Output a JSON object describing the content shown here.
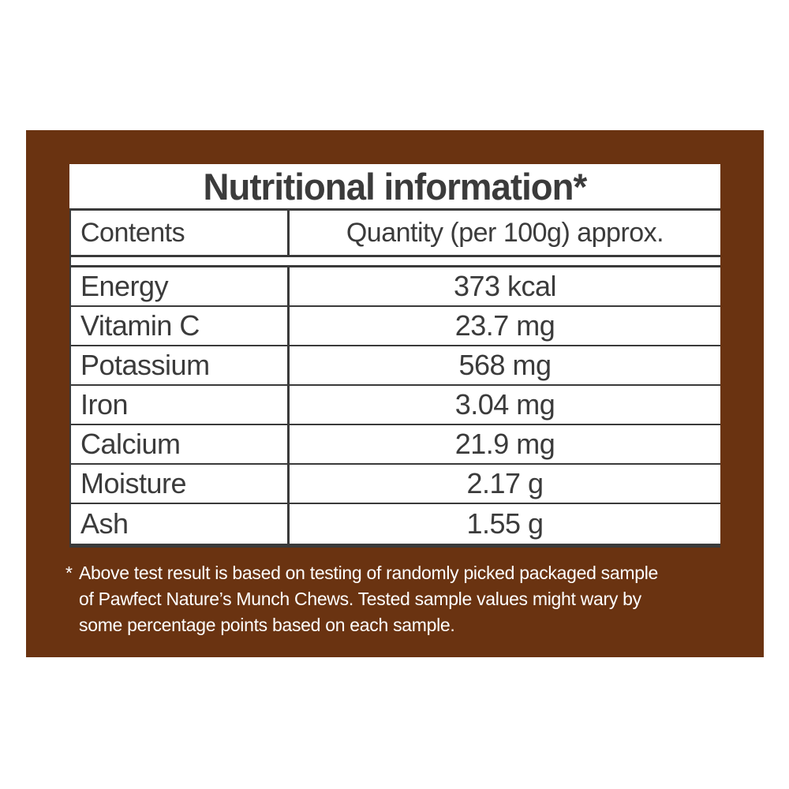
{
  "colors": {
    "page_background": "#ffffff",
    "panel_background": "#6a3311",
    "table_background": "#ffffff",
    "rule_color": "#3a3a3a",
    "table_text_color": "#3b3b3b",
    "footnote_text_color": "#ffffff"
  },
  "table": {
    "title": "Nutritional information*",
    "columns": [
      "Contents",
      "Quantity (per 100g) approx."
    ],
    "rows": [
      {
        "label": "Energy",
        "value": "373 kcal"
      },
      {
        "label": "Vitamin C",
        "value": "23.7 mg"
      },
      {
        "label": "Potassium",
        "value": "568 mg"
      },
      {
        "label": "Iron",
        "value": "3.04 mg"
      },
      {
        "label": "Calcium",
        "value": "21.9 mg"
      },
      {
        "label": "Moisture",
        "value": "2.17 g"
      },
      {
        "label": "Ash",
        "value": "1.55 g"
      }
    ]
  },
  "footnote": {
    "marker": "*",
    "lines": [
      "Above test result is based on testing of randomly picked packaged sample",
      "of Pawfect Nature’s Munch Chews. Tested sample values might wary by",
      "some percentage points based on each sample."
    ]
  }
}
